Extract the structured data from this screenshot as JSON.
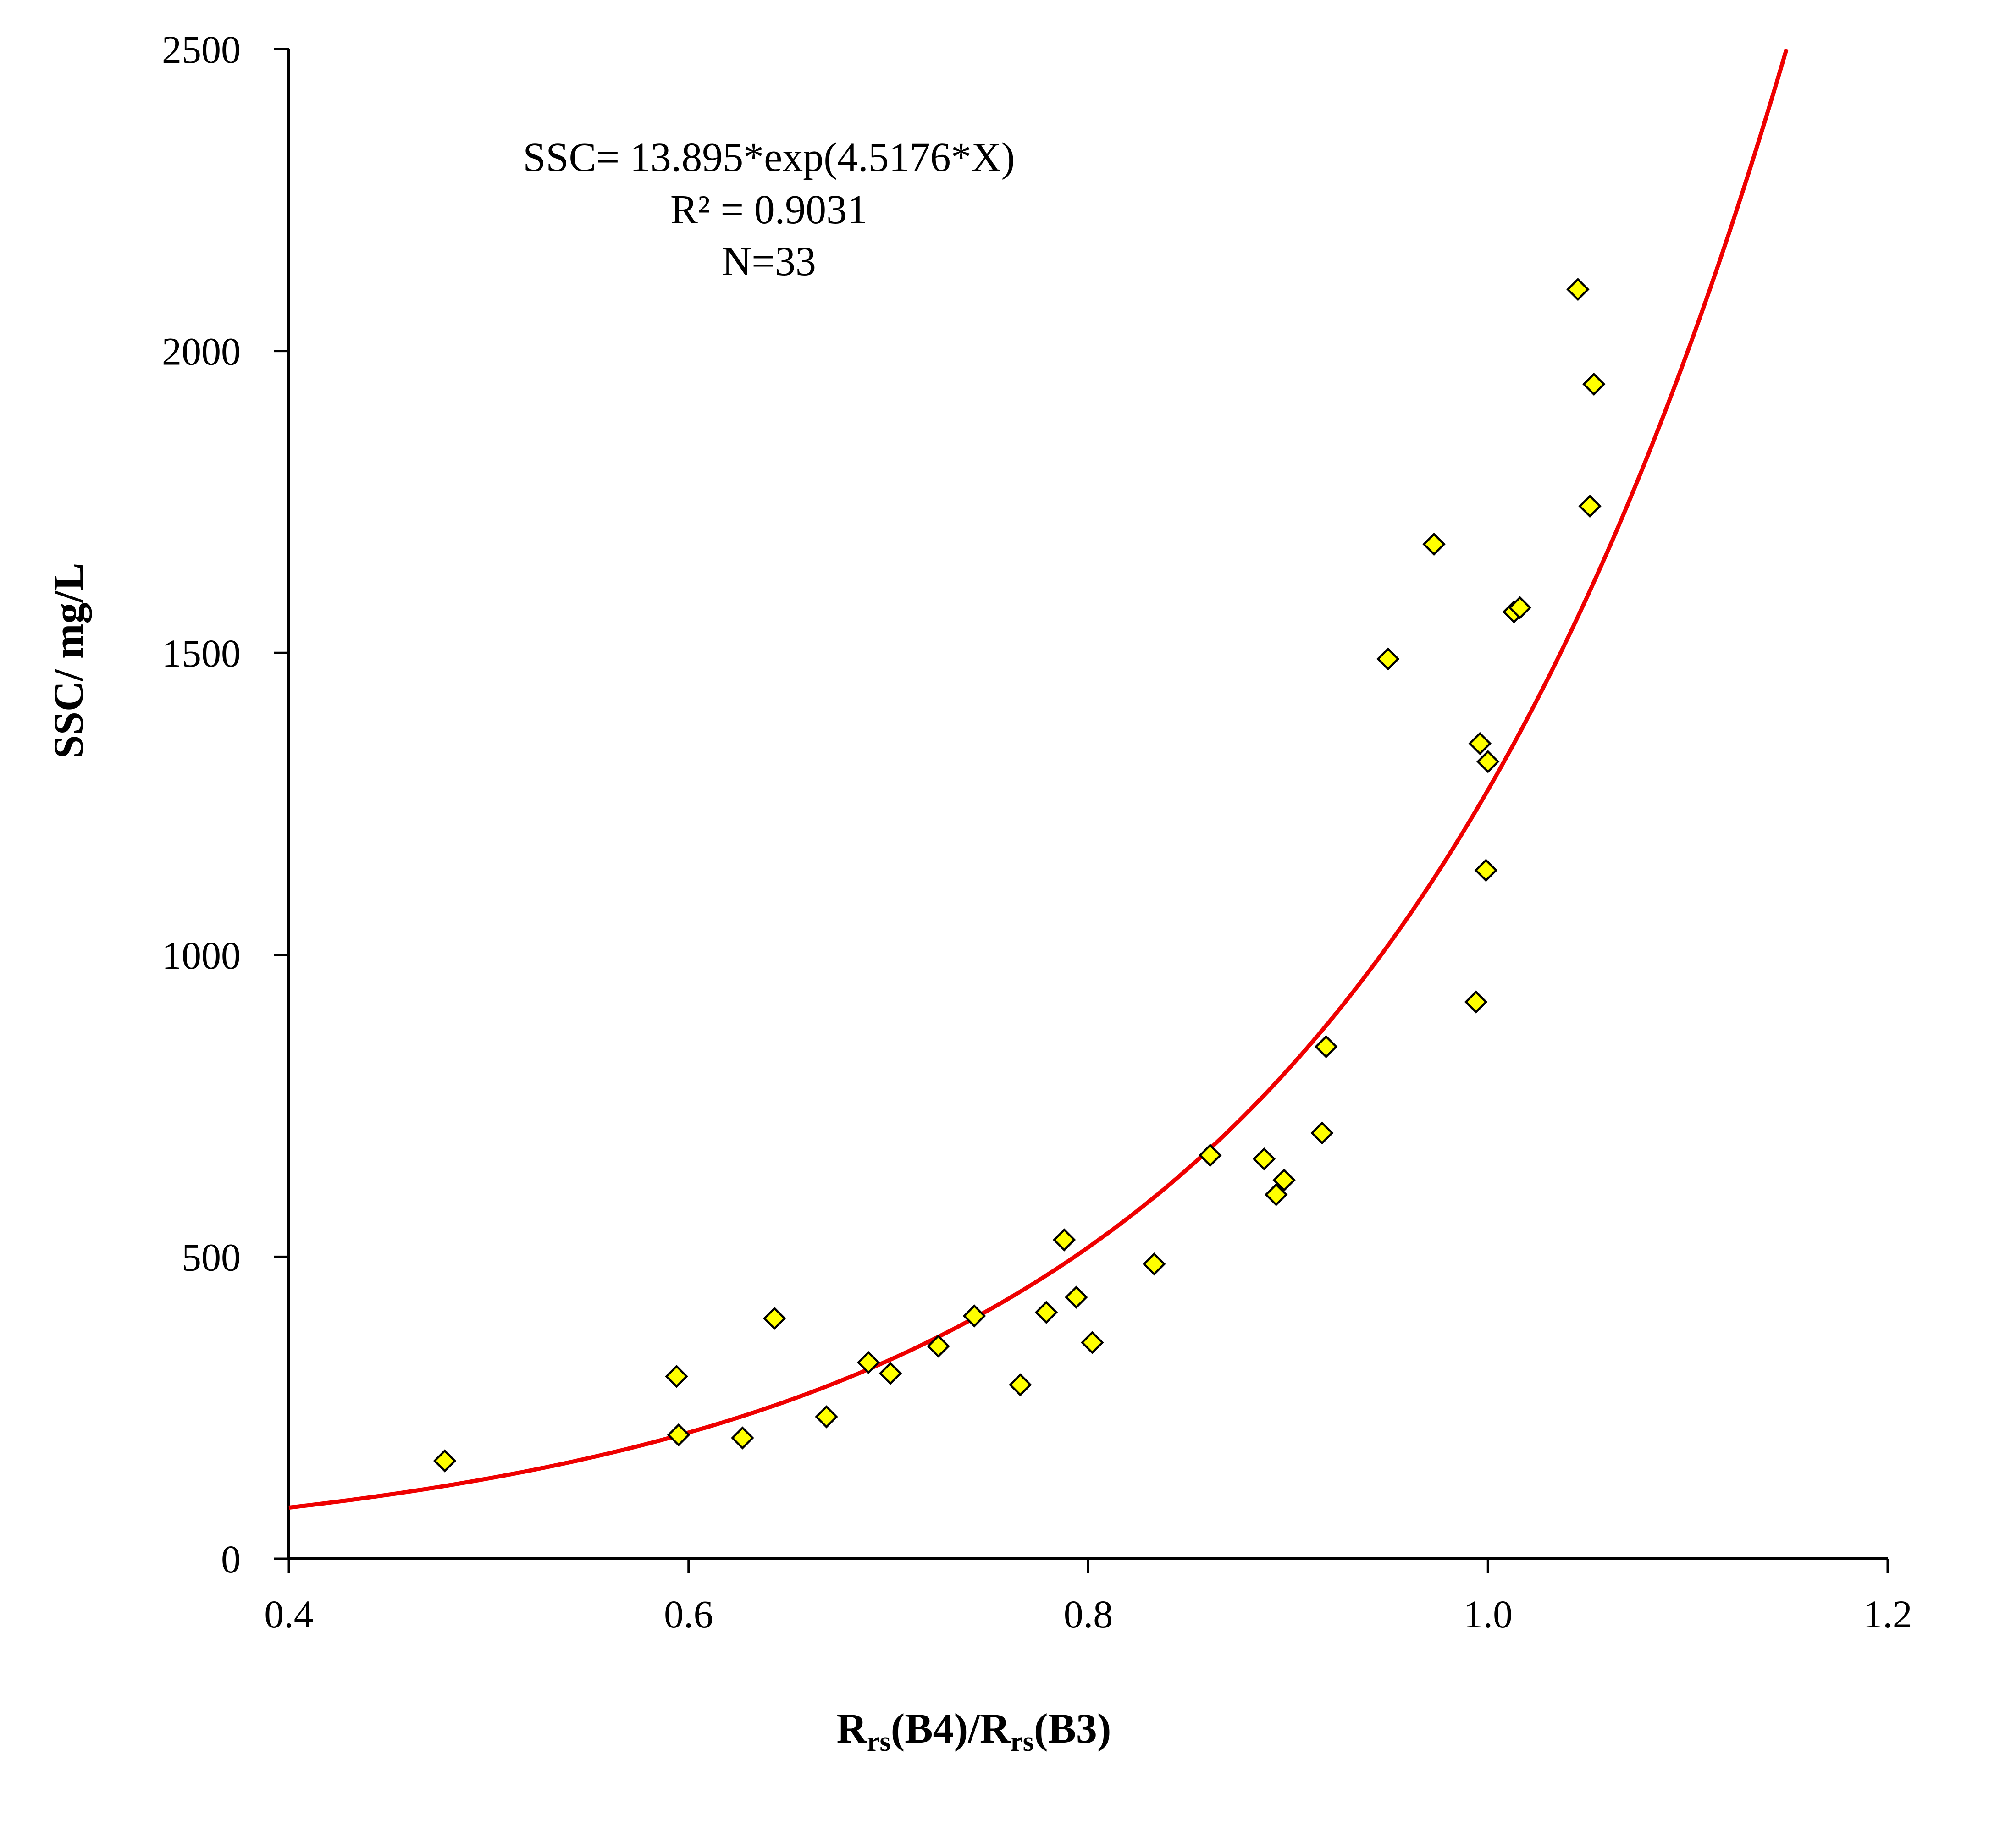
{
  "chart_data": {
    "type": "scatter",
    "title": "",
    "xlabel_main": "R",
    "xlabel_parts": [
      {
        "text": "R",
        "sub": false
      },
      {
        "text": "rs",
        "sub": true
      },
      {
        "text": "(B4)/R",
        "sub": false
      },
      {
        "text": "rs",
        "sub": true
      },
      {
        "text": "(B3)",
        "sub": false
      }
    ],
    "ylabel": "SSC/ mg/L",
    "xlim": [
      0.4,
      1.2
    ],
    "ylim": [
      0,
      2500
    ],
    "x_ticks": [
      0.4,
      0.6,
      0.8,
      1.0,
      1.2
    ],
    "x_tick_labels": [
      "0.4",
      "0.6",
      "0.8",
      "1.0",
      "1.2"
    ],
    "y_ticks": [
      0,
      500,
      1000,
      1500,
      2000,
      2500
    ],
    "y_tick_labels": [
      "0",
      "500",
      "1000",
      "1500",
      "2000",
      "2500"
    ],
    "grid": false,
    "annotations": [
      "SSC= 13.895*exp(4.5176*X)",
      "R² = 0.9031",
      "N=33"
    ],
    "fit": {
      "model": "exponential",
      "a": 13.895,
      "b": 4.5176
    },
    "colors": {
      "marker_fill": "#ffff00",
      "marker_stroke": "#000000",
      "curve": "#ee0000",
      "axis": "#000000"
    },
    "points": [
      {
        "x": 0.478,
        "y": 162
      },
      {
        "x": 0.594,
        "y": 302
      },
      {
        "x": 0.595,
        "y": 205
      },
      {
        "x": 0.627,
        "y": 200
      },
      {
        "x": 0.643,
        "y": 398
      },
      {
        "x": 0.669,
        "y": 235
      },
      {
        "x": 0.69,
        "y": 325
      },
      {
        "x": 0.701,
        "y": 307
      },
      {
        "x": 0.725,
        "y": 352
      },
      {
        "x": 0.743,
        "y": 402
      },
      {
        "x": 0.766,
        "y": 288
      },
      {
        "x": 0.779,
        "y": 408
      },
      {
        "x": 0.788,
        "y": 528
      },
      {
        "x": 0.794,
        "y": 433
      },
      {
        "x": 0.802,
        "y": 358
      },
      {
        "x": 0.833,
        "y": 488
      },
      {
        "x": 0.861,
        "y": 668
      },
      {
        "x": 0.888,
        "y": 662
      },
      {
        "x": 0.894,
        "y": 603
      },
      {
        "x": 0.898,
        "y": 627
      },
      {
        "x": 0.917,
        "y": 705
      },
      {
        "x": 0.919,
        "y": 848
      },
      {
        "x": 0.95,
        "y": 1490
      },
      {
        "x": 0.973,
        "y": 1680
      },
      {
        "x": 0.994,
        "y": 922
      },
      {
        "x": 0.996,
        "y": 1350
      },
      {
        "x": 0.999,
        "y": 1140
      },
      {
        "x": 1.0,
        "y": 1320
      },
      {
        "x": 1.013,
        "y": 1568
      },
      {
        "x": 1.016,
        "y": 1575
      },
      {
        "x": 1.045,
        "y": 2102
      },
      {
        "x": 1.051,
        "y": 1743
      },
      {
        "x": 1.053,
        "y": 1945
      }
    ]
  }
}
